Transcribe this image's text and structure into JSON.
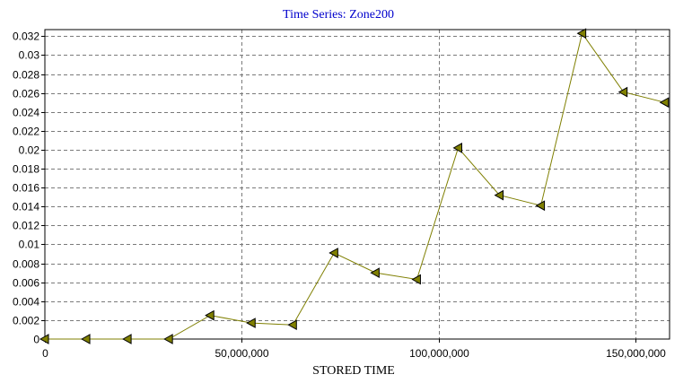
{
  "colors": {
    "title": "#0000cc",
    "line": "#7f7f00",
    "marker_fill": "#808000",
    "grid": "#7a7a7a",
    "background": "#ffffff"
  },
  "chart_data": {
    "type": "line",
    "title": "Time Series: Zone200",
    "xlabel": "STORED TIME",
    "ylabel": "",
    "xlim": [
      0,
      158700000
    ],
    "ylim": [
      0,
      0.0327
    ],
    "x_ticks": [
      0,
      50000000,
      100000000,
      150000000
    ],
    "x_tick_labels": [
      "0",
      "50,000,000",
      "100,000,000",
      "150,000,000"
    ],
    "y_ticks": [
      0,
      0.002,
      0.004,
      0.006,
      0.008,
      0.01,
      0.012,
      0.014,
      0.016,
      0.018,
      0.02,
      0.022,
      0.024,
      0.026,
      0.028,
      0.03,
      0.032
    ],
    "y_tick_labels": [
      "0",
      "0.002",
      "0.004",
      "0.006",
      "0.008",
      "0.01",
      "0.012",
      "0.014",
      "0.016",
      "0.018",
      "0.02",
      "0.022",
      "0.024",
      "0.026",
      "0.028",
      "0.03",
      "0.032"
    ],
    "grid": true,
    "marker": "triangle-left",
    "series": [
      {
        "x": [
          0,
          10500000,
          21000000,
          31500000,
          42000000,
          52500000,
          63000000,
          73500000,
          84000000,
          94500000,
          105000000,
          115500000,
          126000000,
          136500000,
          147000000,
          157500000
        ],
        "values": [
          0,
          0,
          0,
          0,
          0.0025,
          0.0017,
          0.0015,
          0.0091,
          0.007,
          0.0063,
          0.0202,
          0.0152,
          0.0141,
          0.0323,
          0.0261,
          0.025
        ]
      }
    ]
  }
}
